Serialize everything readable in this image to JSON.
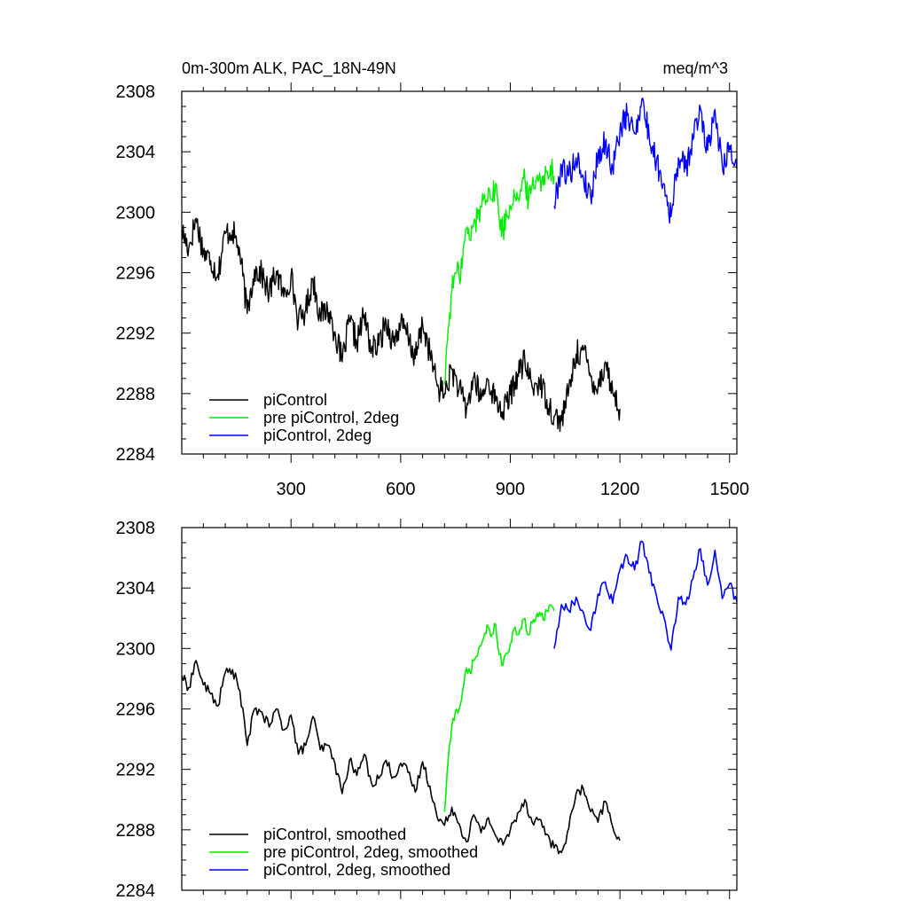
{
  "colors": {
    "piControl": "#000000",
    "pre_2deg": "#00ee00",
    "pi_2deg": "#0000ff"
  },
  "chart_data": [
    {
      "type": "line",
      "title": "0m-300m ALK, PAC_18N-49N",
      "units": "meq/m^3",
      "xlim": [
        1,
        1520
      ],
      "ylim": [
        2284,
        2308
      ],
      "yticks": [
        2284,
        2288,
        2292,
        2296,
        2300,
        2304,
        2308
      ],
      "xticks": [
        300,
        600,
        900,
        1200,
        1500
      ],
      "xtick_labels": [
        "300",
        "600",
        "900",
        "1200",
        "1500"
      ],
      "legend": [
        "piControl",
        "pre piControl, 2deg",
        "piControl, 2deg"
      ],
      "series": [
        {
          "name": "piControl",
          "color": "#000000",
          "x": [
            1,
            20,
            40,
            60,
            80,
            100,
            120,
            140,
            160,
            180,
            200,
            220,
            240,
            260,
            280,
            300,
            320,
            340,
            360,
            380,
            400,
            420,
            440,
            460,
            480,
            500,
            520,
            540,
            560,
            580,
            600,
            620,
            640,
            660,
            680,
            700,
            720,
            740,
            760,
            780,
            800,
            820,
            840,
            860,
            880,
            900,
            920,
            940,
            960,
            980,
            1000,
            1020,
            1040,
            1060,
            1080,
            1100,
            1120,
            1140,
            1160,
            1180,
            1200
          ],
          "y": [
            2298.8,
            2297.6,
            2299.6,
            2297.4,
            2296.8,
            2295.9,
            2298.6,
            2298.8,
            2297.3,
            2293.3,
            2296.2,
            2295.9,
            2294.6,
            2296.1,
            2294.4,
            2295.8,
            2292.8,
            2293.5,
            2295.6,
            2293.1,
            2293.6,
            2292.1,
            2290.1,
            2292.8,
            2291.4,
            2293.2,
            2290.9,
            2291.2,
            2292.8,
            2291.4,
            2292.6,
            2291.8,
            2290.3,
            2292.6,
            2290.7,
            2288.5,
            2288.0,
            2289.6,
            2288.3,
            2286.9,
            2289.1,
            2287.6,
            2288.9,
            2287.5,
            2286.8,
            2287.9,
            2289.3,
            2290.1,
            2288.4,
            2288.8,
            2287.6,
            2286.5,
            2286.2,
            2288.2,
            2290.6,
            2290.9,
            2289.1,
            2288.4,
            2290.1,
            2288.1,
            2287.0
          ]
        },
        {
          "name": "pre piControl, 2deg",
          "color": "#00ee00",
          "x": [
            720,
            730,
            740,
            750,
            760,
            770,
            780,
            790,
            800,
            810,
            820,
            830,
            840,
            850,
            860,
            870,
            880,
            890,
            900,
            910,
            920,
            930,
            940,
            950,
            960,
            970,
            980,
            990,
            1000,
            1010,
            1020
          ],
          "y": [
            2288.6,
            2292.3,
            2294.8,
            2296.0,
            2295.8,
            2297.1,
            2298.9,
            2298.2,
            2299.3,
            2299.6,
            2300.4,
            2301.2,
            2301.6,
            2300.8,
            2301.9,
            2299.5,
            2298.8,
            2299.8,
            2300.4,
            2301.5,
            2300.9,
            2301.4,
            2302.2,
            2300.8,
            2301.8,
            2302.1,
            2302.6,
            2301.8,
            2302.7,
            2303.1,
            2302.4
          ]
        },
        {
          "name": "piControl, 2deg",
          "color": "#0000ff",
          "x": [
            1020,
            1040,
            1060,
            1080,
            1100,
            1120,
            1140,
            1160,
            1180,
            1200,
            1220,
            1240,
            1260,
            1280,
            1300,
            1320,
            1340,
            1360,
            1380,
            1400,
            1420,
            1440,
            1460,
            1480,
            1500,
            1520
          ],
          "y": [
            2300.4,
            2303.1,
            2302.4,
            2303.6,
            2302.3,
            2301.0,
            2303.8,
            2304.6,
            2302.9,
            2305.4,
            2306.4,
            2305.2,
            2307.5,
            2305.0,
            2303.4,
            2301.9,
            2299.7,
            2303.6,
            2302.9,
            2304.8,
            2306.9,
            2304.1,
            2306.8,
            2303.1,
            2304.4,
            2302.9
          ]
        }
      ]
    },
    {
      "type": "line",
      "title": "",
      "units": "",
      "xlim": [
        1,
        1520
      ],
      "ylim": [
        2284,
        2308
      ],
      "yticks": [
        2284,
        2288,
        2292,
        2296,
        2300,
        2304,
        2308
      ],
      "xticks": [
        300,
        600,
        900,
        1200,
        1500
      ],
      "xtick_labels": [],
      "legend": [
        "piControl, smoothed",
        "pre piControl, 2deg, smoothed",
        "piControl, 2deg, smoothed"
      ],
      "series": [
        {
          "name": "piControl, smoothed",
          "color": "#000000",
          "x": [
            1,
            20,
            40,
            60,
            80,
            100,
            120,
            140,
            160,
            180,
            200,
            220,
            240,
            260,
            280,
            300,
            320,
            340,
            360,
            380,
            400,
            420,
            440,
            460,
            480,
            500,
            520,
            540,
            560,
            580,
            600,
            620,
            640,
            660,
            680,
            700,
            720,
            740,
            760,
            780,
            800,
            820,
            840,
            860,
            880,
            900,
            920,
            940,
            960,
            980,
            1000,
            1020,
            1040,
            1060,
            1080,
            1100,
            1120,
            1140,
            1160,
            1180,
            1200
          ],
          "y": [
            2298.2,
            2297.4,
            2299.2,
            2297.6,
            2297.0,
            2296.2,
            2298.4,
            2298.6,
            2297.2,
            2293.6,
            2296.0,
            2295.8,
            2294.8,
            2296.0,
            2294.6,
            2295.6,
            2293.0,
            2293.6,
            2295.5,
            2293.3,
            2293.6,
            2292.4,
            2290.4,
            2292.6,
            2291.6,
            2293.0,
            2291.1,
            2291.4,
            2292.6,
            2291.5,
            2292.4,
            2291.8,
            2290.5,
            2292.5,
            2290.9,
            2288.8,
            2288.3,
            2289.5,
            2288.4,
            2287.2,
            2289.0,
            2287.8,
            2288.8,
            2287.6,
            2287.0,
            2288.0,
            2289.1,
            2290.0,
            2288.5,
            2288.7,
            2287.7,
            2286.8,
            2286.5,
            2288.1,
            2290.4,
            2290.7,
            2289.2,
            2288.5,
            2289.9,
            2288.2,
            2287.3
          ]
        },
        {
          "name": "pre piControl, 2deg, smoothed",
          "color": "#00ee00",
          "x": [
            720,
            730,
            740,
            750,
            760,
            770,
            780,
            790,
            800,
            810,
            820,
            830,
            840,
            850,
            860,
            870,
            880,
            890,
            900,
            910,
            920,
            930,
            940,
            950,
            960,
            970,
            980,
            990,
            1000,
            1010,
            1020
          ],
          "y": [
            2289.2,
            2292.6,
            2294.9,
            2295.9,
            2296.0,
            2297.3,
            2298.7,
            2298.4,
            2299.2,
            2299.5,
            2300.2,
            2301.0,
            2301.4,
            2300.9,
            2301.6,
            2299.6,
            2298.9,
            2299.7,
            2300.3,
            2301.3,
            2300.9,
            2301.3,
            2302.0,
            2300.9,
            2301.7,
            2302.0,
            2302.4,
            2301.9,
            2302.5,
            2302.9,
            2302.5
          ]
        },
        {
          "name": "piControl, 2deg, smoothed",
          "color": "#0000ff",
          "x": [
            1020,
            1040,
            1060,
            1080,
            1100,
            1120,
            1140,
            1160,
            1180,
            1200,
            1220,
            1240,
            1260,
            1280,
            1300,
            1320,
            1340,
            1360,
            1380,
            1400,
            1420,
            1440,
            1460,
            1480,
            1500,
            1520
          ],
          "y": [
            2300.0,
            2302.9,
            2302.5,
            2303.4,
            2302.4,
            2301.2,
            2303.6,
            2304.4,
            2303.0,
            2305.2,
            2306.1,
            2305.2,
            2307.1,
            2305.0,
            2303.5,
            2302.1,
            2299.9,
            2303.4,
            2302.9,
            2304.6,
            2306.6,
            2304.2,
            2306.5,
            2303.3,
            2304.3,
            2303.1
          ]
        }
      ]
    }
  ]
}
